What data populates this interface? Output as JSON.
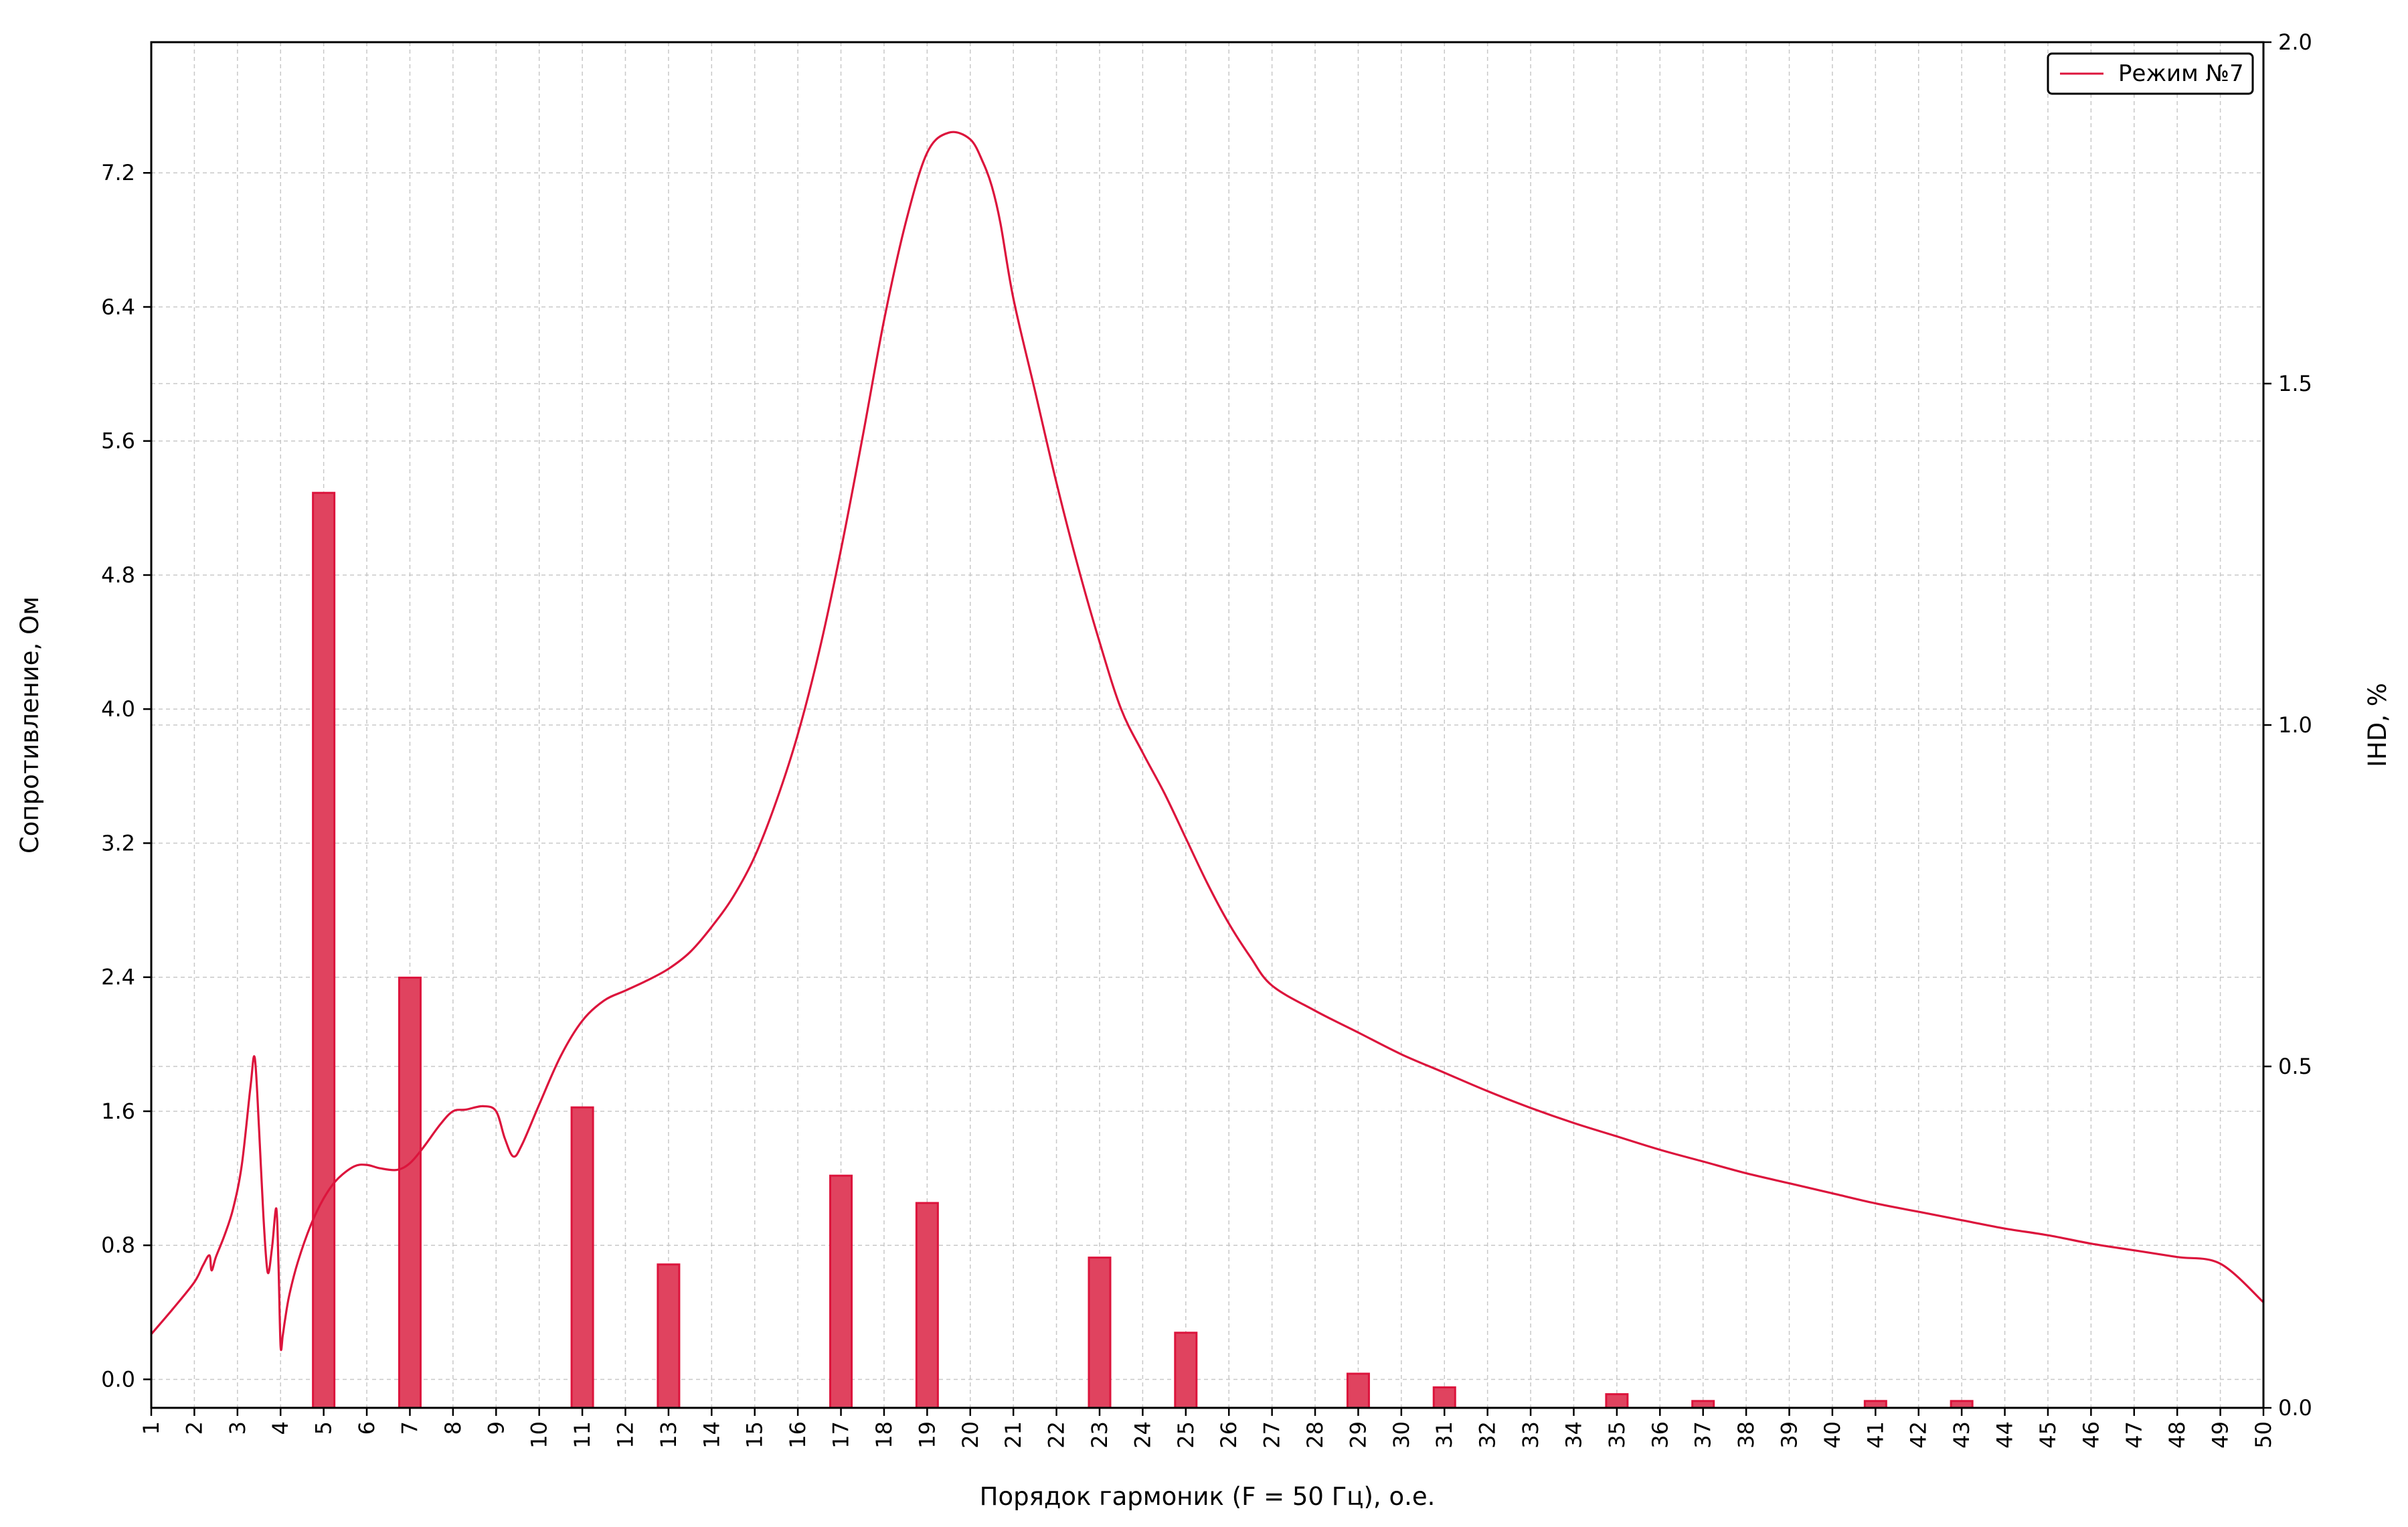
{
  "chart_data": {
    "type": "bar",
    "xlabel": "Порядок гармоник (F = 50 Гц), о.е.",
    "ylabel_left": "Сопротивление, Ом",
    "ylabel_right": "IHD, %",
    "x_ticks": [
      1,
      2,
      3,
      4,
      5,
      6,
      7,
      8,
      9,
      10,
      11,
      12,
      13,
      14,
      15,
      16,
      17,
      18,
      19,
      20,
      21,
      22,
      23,
      24,
      25,
      26,
      27,
      28,
      29,
      30,
      31,
      32,
      33,
      34,
      35,
      36,
      37,
      38,
      39,
      40,
      41,
      42,
      43,
      44,
      45,
      46,
      47,
      48,
      49,
      50
    ],
    "xlim": [
      1,
      50
    ],
    "ylim_left": [
      -0.17,
      7.98
    ],
    "ylim_right": [
      0,
      2.0
    ],
    "y_ticks_left": [
      0.0,
      0.8,
      1.6,
      2.4,
      3.2,
      4.0,
      4.8,
      5.6,
      6.4,
      7.2
    ],
    "y_ticks_left_labels": [
      "0.0",
      "0.8",
      "1.6",
      "2.4",
      "3.2",
      "4.0",
      "4.8",
      "5.6",
      "6.4",
      "7.2"
    ],
    "y_ticks_right": [
      0.0,
      0.5,
      1.0,
      1.5,
      2.0
    ],
    "y_ticks_right_labels": [
      "0.0",
      "0.5",
      "1.0",
      "1.5",
      "2.0"
    ],
    "grid": true,
    "legend_position": "top-right",
    "colors": {
      "line": "#dc143c",
      "bar_fill": "#e0435f",
      "bar_edge": "#dc143c",
      "grid": "#c8c8c8"
    },
    "bars": {
      "axis": "right",
      "harmonics": [
        5,
        7,
        11,
        13,
        17,
        19,
        23,
        25,
        29,
        31,
        35,
        37,
        41,
        43
      ],
      "values": [
        1.34,
        0.63,
        0.44,
        0.21,
        0.34,
        0.3,
        0.22,
        0.11,
        0.05,
        0.03,
        0.02,
        0.01,
        0.01,
        0.01
      ]
    },
    "series": [
      {
        "name": "Режим №7",
        "axis": "left",
        "x": [
          1.0,
          1.5,
          2.0,
          2.2,
          2.35,
          2.4,
          2.5,
          2.7,
          2.9,
          3.1,
          3.3,
          3.4,
          3.5,
          3.6,
          3.7,
          3.8,
          3.9,
          3.95,
          4.0,
          4.05,
          4.1,
          4.2,
          4.4,
          4.7,
          5.0,
          5.3,
          5.7,
          6.0,
          6.3,
          6.7,
          7.0,
          7.3,
          7.7,
          8.0,
          8.3,
          8.7,
          9.0,
          9.2,
          9.4,
          9.6,
          10.0,
          10.5,
          11.0,
          11.5,
          12.0,
          12.5,
          13.0,
          13.5,
          14.0,
          14.5,
          15.0,
          15.5,
          16.0,
          16.5,
          17.0,
          17.5,
          18.0,
          18.5,
          19.0,
          19.5,
          20.0,
          20.3,
          20.5,
          20.7,
          21.0,
          21.5,
          22.0,
          22.5,
          23.0,
          23.5,
          24.0,
          24.5,
          25.0,
          25.5,
          26.0,
          26.5,
          27.0,
          28.0,
          29.0,
          30.0,
          31.0,
          32.0,
          33.0,
          34.0,
          35.0,
          36.0,
          37.0,
          38.0,
          39.0,
          40.0,
          41.0,
          42.0,
          43.0,
          44.0,
          45.0,
          46.0,
          47.0,
          48.0,
          49.0,
          50.0
        ],
        "y": [
          0.27,
          0.42,
          0.58,
          0.68,
          0.74,
          0.65,
          0.73,
          0.86,
          1.02,
          1.28,
          1.74,
          1.92,
          1.5,
          0.98,
          0.64,
          0.78,
          1.02,
          0.7,
          0.2,
          0.26,
          0.35,
          0.5,
          0.7,
          0.92,
          1.08,
          1.19,
          1.27,
          1.28,
          1.26,
          1.25,
          1.29,
          1.38,
          1.52,
          1.6,
          1.61,
          1.63,
          1.6,
          1.44,
          1.33,
          1.4,
          1.64,
          1.93,
          2.14,
          2.26,
          2.32,
          2.38,
          2.45,
          2.55,
          2.7,
          2.88,
          3.12,
          3.45,
          3.85,
          4.35,
          4.95,
          5.62,
          6.32,
          6.9,
          7.32,
          7.44,
          7.4,
          7.26,
          7.12,
          6.9,
          6.45,
          5.9,
          5.35,
          4.85,
          4.4,
          4.0,
          3.74,
          3.5,
          3.23,
          2.96,
          2.72,
          2.52,
          2.35,
          2.2,
          2.07,
          1.94,
          1.83,
          1.72,
          1.62,
          1.53,
          1.45,
          1.37,
          1.3,
          1.23,
          1.17,
          1.11,
          1.05,
          1.0,
          0.95,
          0.9,
          0.86,
          0.81,
          0.77,
          0.73,
          0.69,
          0.46
        ]
      }
    ]
  }
}
